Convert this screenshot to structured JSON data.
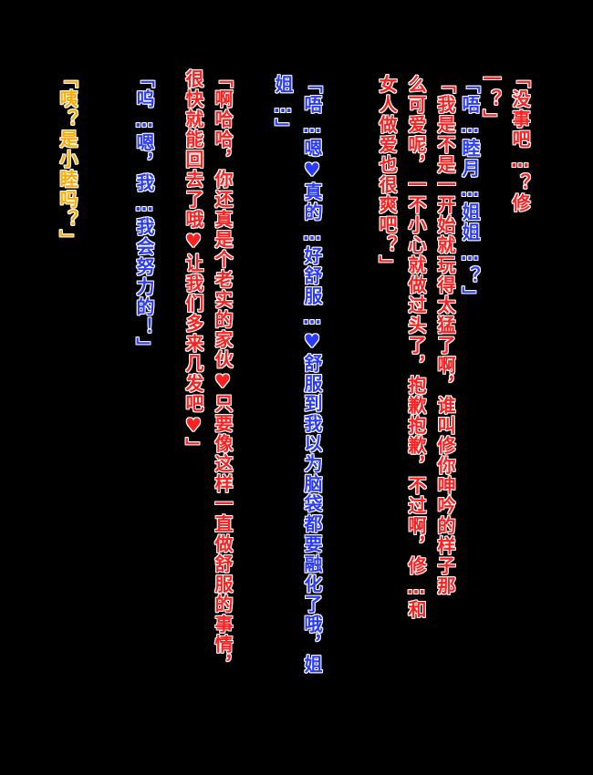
{
  "colors": {
    "background": "#000000",
    "red": "#ff2020",
    "blue": "#2a3bff",
    "orange": "#ffaa00",
    "outline": "#ffffff"
  },
  "columns": [
    {
      "id": "c1",
      "speaker_color": "red",
      "text": "「没事吧…？修\n一？」"
    },
    {
      "id": "c2",
      "speaker_color": "blue",
      "text": "「唔…睦月…姐姐…？」"
    },
    {
      "id": "c3",
      "speaker_color": "red",
      "text": "「我是不是一开始就玩得太猛了啊，谁叫修你呻吟的样子那\n么可爱呢，一不小心就做过头了，抱歉抱歉，不过啊，修…和\n女人做爱也很爽吧？」"
    },
    {
      "id": "c4",
      "speaker_color": "blue",
      "text": "「唔…嗯♥真的…好舒服…♥舒服到我以为脑袋都要融化了哦，姐\n姐…」"
    },
    {
      "id": "c5",
      "speaker_color": "red",
      "text": "「啊哈哈，你还真是个老实的家伙♥只要像这样一直做舒服的事情，\n很快就能回去了哦♥让我们多来几发吧♥」"
    },
    {
      "id": "c6",
      "speaker_color": "blue",
      "text": "「呜…嗯，我…我会努力的！」"
    },
    {
      "id": "c7",
      "speaker_color": "orange",
      "text": "「咦？是小睦吗？」"
    }
  ]
}
